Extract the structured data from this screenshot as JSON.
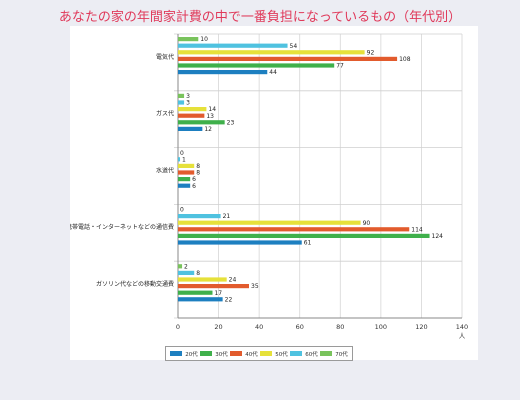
{
  "title": "あなたの家の年間家計費の中で一番負担になっているもの（年代別）",
  "chart_data": {
    "type": "bar",
    "orientation": "horizontal",
    "title": "あなたの家の年間家計費の中で一番負担になっているもの（年代別）",
    "xlabel": "人",
    "ylabel": "",
    "xlim": [
      0,
      140
    ],
    "xticks": [
      "0",
      "20",
      "40",
      "60",
      "80",
      "100",
      "120",
      "140"
    ],
    "grid": true,
    "legend_position": "bottom",
    "categories": [
      "電気代",
      "ガス代",
      "水道代",
      "携帯電話・インターネットなどの通信費",
      "ガソリン代などの移動交通費"
    ],
    "series": [
      {
        "name": "70代",
        "color": "#79c35c",
        "values": [
          10,
          3,
          0,
          0,
          2
        ]
      },
      {
        "name": "60代",
        "color": "#4fc2e0",
        "values": [
          54,
          3,
          1,
          21,
          8
        ]
      },
      {
        "name": "50代",
        "color": "#e6e13a",
        "values": [
          92,
          14,
          8,
          90,
          24
        ]
      },
      {
        "name": "40代",
        "color": "#e25b2d",
        "values": [
          108,
          13,
          8,
          114,
          35
        ]
      },
      {
        "name": "30代",
        "color": "#3fb04b",
        "values": [
          77,
          23,
          6,
          124,
          17
        ]
      },
      {
        "name": "20代",
        "color": "#1d7fc0",
        "values": [
          44,
          12,
          6,
          61,
          22
        ]
      }
    ],
    "legend": [
      {
        "name": "20代",
        "color": "#1d7fc0"
      },
      {
        "name": "30代",
        "color": "#3fb04b"
      },
      {
        "name": "40代",
        "color": "#e25b2d"
      },
      {
        "name": "50代",
        "color": "#e6e13a"
      },
      {
        "name": "60代",
        "color": "#4fc2e0"
      },
      {
        "name": "70代",
        "color": "#79c35c"
      }
    ]
  }
}
